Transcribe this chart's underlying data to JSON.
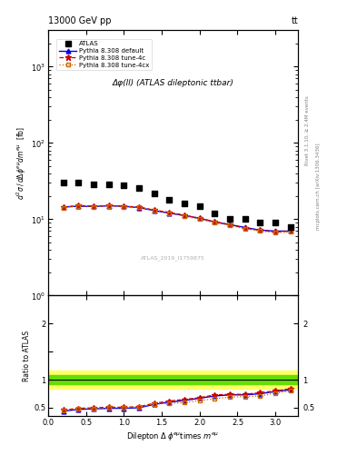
{
  "title_top_left": "13000 GeV pp",
  "title_top_right": "tt",
  "plot_title": "Δφ(ll) (ATLAS dileptonic ttbar)",
  "watermark": "ATLAS_2019_I1759875",
  "right_label_top": "Rivet 3.1.10, ≥ 2.4M events",
  "right_label_bot": "mcplots.cern.ch [arXiv:1306.3436]",
  "atlas_x": [
    0.2,
    0.4,
    0.6,
    0.8,
    1.0,
    1.2,
    1.4,
    1.6,
    1.8,
    2.0,
    2.2,
    2.4,
    2.6,
    2.8,
    3.0,
    3.2
  ],
  "atlas_y": [
    30,
    30,
    29,
    29,
    28,
    26,
    22,
    18,
    16,
    15,
    12,
    10,
    10,
    9,
    9,
    8
  ],
  "pythia_default_x": [
    0.2,
    0.4,
    0.6,
    0.8,
    1.0,
    1.2,
    1.4,
    1.6,
    1.8,
    2.0,
    2.2,
    2.4,
    2.6,
    2.8,
    3.0,
    3.2
  ],
  "pythia_default_y": [
    14.5,
    14.8,
    14.7,
    15.0,
    14.8,
    14.2,
    13.0,
    12.0,
    11.2,
    10.3,
    9.2,
    8.5,
    7.8,
    7.2,
    7.0,
    7.0
  ],
  "pythia_4c_x": [
    0.2,
    0.4,
    0.6,
    0.8,
    1.0,
    1.2,
    1.4,
    1.6,
    1.8,
    2.0,
    2.2,
    2.4,
    2.6,
    2.8,
    3.0,
    3.2
  ],
  "pythia_4c_y": [
    14.3,
    15.2,
    14.8,
    15.2,
    14.8,
    14.5,
    13.2,
    12.3,
    11.3,
    10.3,
    9.3,
    8.5,
    7.6,
    7.2,
    6.8,
    7.0
  ],
  "pythia_4cx_x": [
    0.2,
    0.4,
    0.6,
    0.8,
    1.0,
    1.2,
    1.4,
    1.6,
    1.8,
    2.0,
    2.2,
    2.4,
    2.6,
    2.8,
    3.0,
    3.2
  ],
  "pythia_4cx_y": [
    14.2,
    15.0,
    14.6,
    15.0,
    14.5,
    14.3,
    13.0,
    12.0,
    11.0,
    10.0,
    9.0,
    8.3,
    7.5,
    7.0,
    6.7,
    6.8
  ],
  "ratio_default_y": [
    0.44,
    0.47,
    0.48,
    0.49,
    0.49,
    0.5,
    0.56,
    0.6,
    0.63,
    0.67,
    0.71,
    0.73,
    0.73,
    0.75,
    0.79,
    0.82
  ],
  "ratio_4c_y": [
    0.46,
    0.49,
    0.5,
    0.51,
    0.51,
    0.52,
    0.58,
    0.62,
    0.65,
    0.68,
    0.73,
    0.74,
    0.74,
    0.77,
    0.8,
    0.84
  ],
  "ratio_4cx_y": [
    0.45,
    0.48,
    0.49,
    0.5,
    0.5,
    0.51,
    0.57,
    0.58,
    0.59,
    0.63,
    0.66,
    0.69,
    0.7,
    0.71,
    0.76,
    0.8
  ],
  "color_atlas": "#000000",
  "color_default": "#0000ee",
  "color_4c": "#cc0000",
  "color_4cx": "#cc6600",
  "green_band_lo": 0.92,
  "green_band_hi": 1.08,
  "yellow_band_lo": 0.84,
  "yellow_band_hi": 1.16,
  "ylim_main_lo": 1.0,
  "ylim_main_hi": 3000,
  "ylim_ratio_lo": 0.35,
  "ylim_ratio_hi": 2.5,
  "xlim_lo": 0.0,
  "xlim_hi": 3.3
}
